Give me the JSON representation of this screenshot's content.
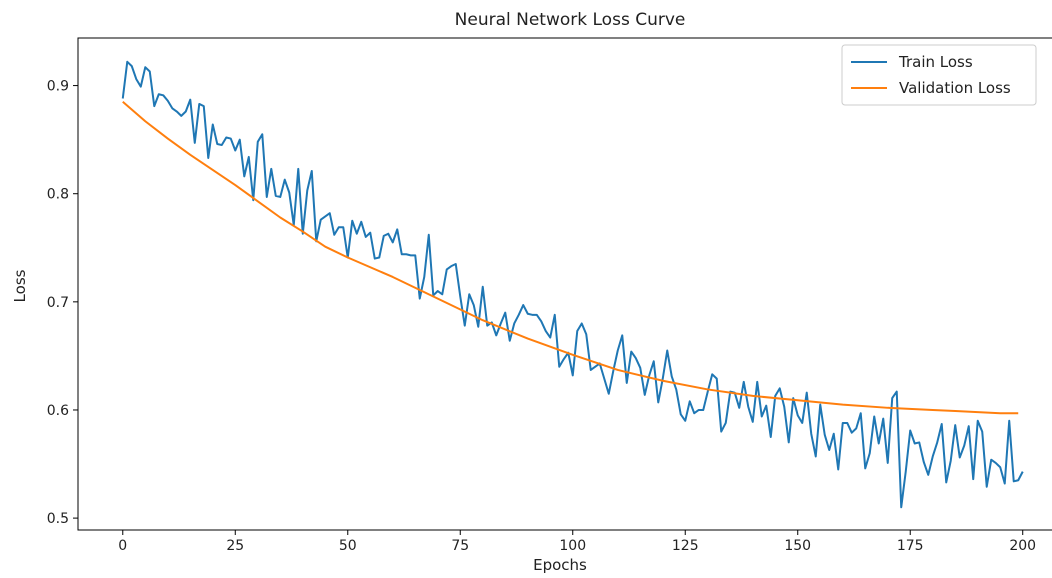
{
  "chart_data": {
    "type": "line",
    "title": "Neural Network Loss Curve",
    "xlabel": "Epochs",
    "ylabel": "Loss",
    "xlim": [
      -9.95,
      208.95
    ],
    "ylim": [
      0.489,
      0.944
    ],
    "xticks": [
      0,
      25,
      50,
      75,
      100,
      125,
      150,
      175,
      200
    ],
    "xtick_labels": [
      "0",
      "25",
      "50",
      "75",
      "100",
      "125",
      "150",
      "175",
      "200"
    ],
    "yticks": [
      0.5,
      0.6,
      0.7,
      0.8,
      0.9
    ],
    "ytick_labels": [
      "0.5",
      "0.6",
      "0.7",
      "0.8",
      "0.9"
    ],
    "grid": false,
    "legend_position": "top-right",
    "series": [
      {
        "name": "Train Loss",
        "color": "#1f77b4",
        "x_start": 0,
        "x_step": 1,
        "values": [
          0.888,
          0.922,
          0.918,
          0.906,
          0.899,
          0.917,
          0.913,
          0.881,
          0.892,
          0.891,
          0.886,
          0.879,
          0.876,
          0.872,
          0.876,
          0.887,
          0.847,
          0.883,
          0.881,
          0.833,
          0.864,
          0.846,
          0.845,
          0.852,
          0.851,
          0.84,
          0.85,
          0.816,
          0.834,
          0.794,
          0.848,
          0.855,
          0.797,
          0.823,
          0.798,
          0.797,
          0.813,
          0.801,
          0.771,
          0.823,
          0.763,
          0.803,
          0.821,
          0.756,
          0.776,
          0.779,
          0.782,
          0.762,
          0.769,
          0.769,
          0.741,
          0.775,
          0.763,
          0.774,
          0.76,
          0.764,
          0.74,
          0.741,
          0.761,
          0.763,
          0.755,
          0.767,
          0.744,
          0.744,
          0.743,
          0.743,
          0.703,
          0.723,
          0.762,
          0.706,
          0.71,
          0.707,
          0.73,
          0.733,
          0.735,
          0.705,
          0.678,
          0.707,
          0.697,
          0.677,
          0.714,
          0.678,
          0.681,
          0.669,
          0.68,
          0.69,
          0.664,
          0.68,
          0.688,
          0.697,
          0.689,
          0.688,
          0.688,
          0.682,
          0.673,
          0.667,
          0.688,
          0.64,
          0.647,
          0.653,
          0.632,
          0.673,
          0.68,
          0.67,
          0.637,
          0.64,
          0.643,
          0.629,
          0.615,
          0.636,
          0.655,
          0.669,
          0.625,
          0.654,
          0.648,
          0.639,
          0.614,
          0.632,
          0.645,
          0.607,
          0.629,
          0.655,
          0.631,
          0.619,
          0.596,
          0.59,
          0.608,
          0.597,
          0.6,
          0.6,
          0.617,
          0.633,
          0.629,
          0.58,
          0.588,
          0.617,
          0.616,
          0.602,
          0.626,
          0.603,
          0.589,
          0.626,
          0.594,
          0.604,
          0.575,
          0.613,
          0.62,
          0.603,
          0.57,
          0.611,
          0.595,
          0.588,
          0.616,
          0.578,
          0.557,
          0.605,
          0.577,
          0.563,
          0.578,
          0.545,
          0.588,
          0.588,
          0.579,
          0.583,
          0.597,
          0.546,
          0.56,
          0.594,
          0.569,
          0.592,
          0.551,
          0.611,
          0.617,
          0.51,
          0.543,
          0.581,
          0.569,
          0.57,
          0.552,
          0.54,
          0.557,
          0.57,
          0.587,
          0.533,
          0.553,
          0.586,
          0.556,
          0.567,
          0.585,
          0.536,
          0.59,
          0.58,
          0.529,
          0.554,
          0.551,
          0.547,
          0.532,
          0.59,
          0.534,
          0.535,
          0.543
        ]
      },
      {
        "name": "Validation Loss",
        "color": "#ff7f0e",
        "x": [
          0,
          5,
          10,
          15,
          20,
          25,
          30,
          35,
          40,
          45,
          50,
          60,
          70,
          80,
          90,
          100,
          110,
          120,
          130,
          140,
          150,
          160,
          170,
          180,
          185,
          190,
          195,
          199
        ],
        "values": [
          0.885,
          0.867,
          0.851,
          0.836,
          0.822,
          0.808,
          0.793,
          0.778,
          0.765,
          0.751,
          0.741,
          0.723,
          0.703,
          0.683,
          0.666,
          0.651,
          0.637,
          0.627,
          0.619,
          0.613,
          0.609,
          0.605,
          0.602,
          0.6,
          0.599,
          0.598,
          0.597,
          0.597
        ]
      }
    ]
  }
}
